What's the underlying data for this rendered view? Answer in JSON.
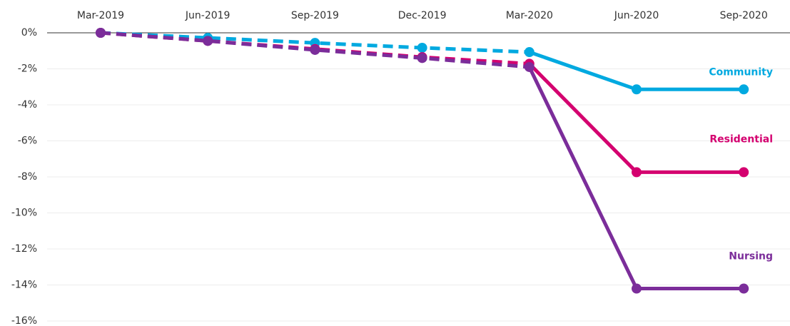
{
  "chart_data": {
    "type": "line",
    "categories": [
      "Mar-2019",
      "Jun-2019",
      "Sep-2019",
      "Dec-2019",
      "Mar-2020",
      "Jun-2020",
      "Sep-2020"
    ],
    "dash_until": "Mar-2020",
    "series": [
      {
        "name": "Community",
        "color": "#00a9e0",
        "values": [
          0,
          -0.28,
          -0.56,
          -0.83,
          -1.07,
          -3.14,
          -3.14
        ]
      },
      {
        "name": "Residential",
        "color": "#d4006f",
        "values": [
          0,
          -0.45,
          -0.9,
          -1.35,
          -1.72,
          -7.74,
          -7.74
        ]
      },
      {
        "name": "Nursing",
        "color": "#7b2d9a",
        "values": [
          0,
          -0.45,
          -0.95,
          -1.4,
          -1.9,
          -14.2,
          -14.2
        ]
      }
    ],
    "ylim": [
      -16,
      0
    ],
    "yticks": [
      {
        "value": 0,
        "label": "0%"
      },
      {
        "value": -2,
        "label": "-2%"
      },
      {
        "value": -4,
        "label": "-4%"
      },
      {
        "value": -6,
        "label": "-6%"
      },
      {
        "value": -8,
        "label": "-8%"
      },
      {
        "value": -10,
        "label": "-10%"
      },
      {
        "value": -12,
        "label": "-12%"
      },
      {
        "value": -14,
        "label": "-14%"
      },
      {
        "value": -16,
        "label": "-16%"
      }
    ],
    "grid": true
  }
}
